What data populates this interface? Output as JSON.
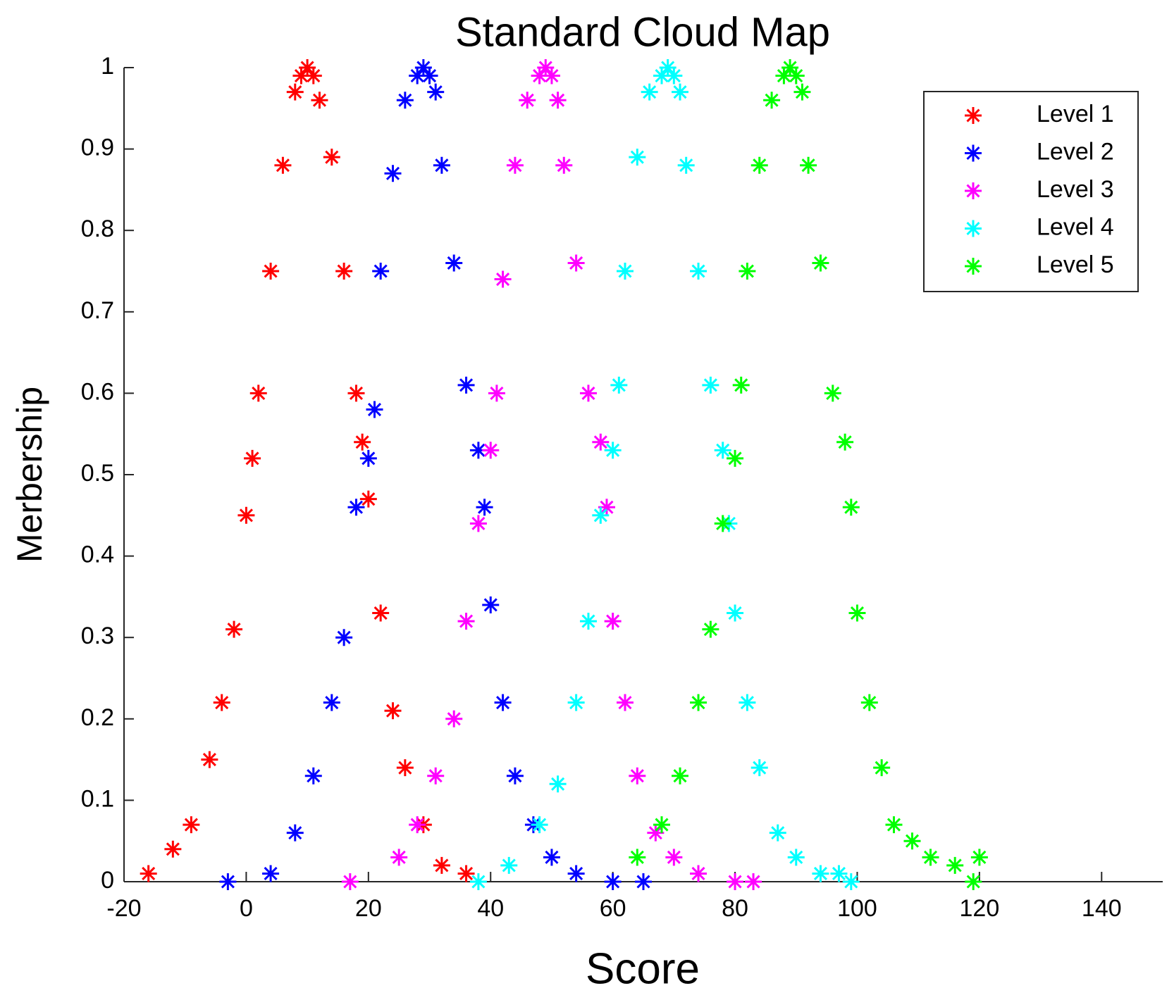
{
  "chart_data": {
    "type": "scatter",
    "title": "Standard Cloud Map",
    "x_label": "Score",
    "y_label": "Merbership",
    "xlim": [
      -20,
      150
    ],
    "xticks": [
      -20,
      0,
      20,
      40,
      60,
      80,
      100,
      120,
      140
    ],
    "ylim": [
      0,
      1
    ],
    "yticks": [
      0,
      0.1,
      0.2,
      0.3,
      0.4,
      0.5,
      0.6,
      0.7,
      0.8,
      0.9,
      1
    ],
    "legend": "northeast",
    "marker": "asterisk",
    "series": [
      {
        "name": "Level 1",
        "color": "#ff0000",
        "x": [
          -16,
          -12,
          -9,
          -6,
          -4,
          -2,
          0,
          1,
          2,
          4,
          6,
          8,
          9,
          10,
          11,
          12,
          14,
          16,
          18,
          19,
          20,
          22,
          24,
          26,
          29,
          32,
          36
        ],
        "values": [
          0.01,
          0.04,
          0.07,
          0.15,
          0.22,
          0.31,
          0.45,
          0.52,
          0.6,
          0.75,
          0.88,
          0.97,
          0.99,
          1,
          0.99,
          0.96,
          0.89,
          0.75,
          0.6,
          0.54,
          0.47,
          0.33,
          0.21,
          0.14,
          0.07,
          0.02,
          0.01
        ]
      },
      {
        "name": "Level 2",
        "color": "#0000ff",
        "x": [
          -3,
          4,
          8,
          11,
          14,
          16,
          18,
          20,
          21,
          22,
          24,
          26,
          28,
          29,
          30,
          31,
          32,
          34,
          36,
          38,
          39,
          40,
          42,
          44,
          47,
          50,
          54,
          60,
          65
        ],
        "values": [
          0.0,
          0.01,
          0.06,
          0.13,
          0.22,
          0.3,
          0.46,
          0.52,
          0.58,
          0.75,
          0.87,
          0.96,
          0.99,
          1,
          0.99,
          0.97,
          0.88,
          0.76,
          0.61,
          0.53,
          0.46,
          0.34,
          0.22,
          0.13,
          0.07,
          0.03,
          0.01,
          0.0,
          0.0
        ]
      },
      {
        "name": "Level 3",
        "color": "#ff00ff",
        "x": [
          17,
          25,
          28,
          31,
          34,
          36,
          38,
          40,
          41,
          42,
          44,
          46,
          48,
          49,
          50,
          51,
          52,
          54,
          56,
          58,
          59,
          60,
          62,
          64,
          67,
          70,
          74,
          80,
          83
        ],
        "values": [
          0.0,
          0.03,
          0.07,
          0.13,
          0.2,
          0.32,
          0.44,
          0.53,
          0.6,
          0.74,
          0.88,
          0.96,
          0.99,
          1,
          0.99,
          0.96,
          0.88,
          0.76,
          0.6,
          0.54,
          0.46,
          0.32,
          0.22,
          0.13,
          0.06,
          0.03,
          0.01,
          0.0,
          0.0
        ]
      },
      {
        "name": "Level 4",
        "color": "#00ffff",
        "x": [
          38,
          43,
          48,
          51,
          54,
          56,
          58,
          60,
          61,
          62,
          64,
          66,
          68,
          69,
          70,
          71,
          72,
          74,
          76,
          78,
          79,
          80,
          82,
          84,
          87,
          90,
          94,
          97,
          99
        ],
        "values": [
          0.0,
          0.02,
          0.07,
          0.12,
          0.22,
          0.32,
          0.45,
          0.53,
          0.61,
          0.75,
          0.89,
          0.97,
          0.99,
          1,
          0.99,
          0.97,
          0.88,
          0.75,
          0.61,
          0.53,
          0.44,
          0.33,
          0.22,
          0.14,
          0.06,
          0.03,
          0.01,
          0.01,
          0.0
        ]
      },
      {
        "name": "Level 5",
        "color": "#00ff00",
        "x": [
          64,
          68,
          71,
          74,
          76,
          78,
          80,
          81,
          82,
          84,
          86,
          88,
          89,
          90,
          91,
          92,
          94,
          96,
          98,
          99,
          100,
          102,
          104,
          106,
          109,
          112,
          116,
          119,
          120
        ],
        "values": [
          0.03,
          0.07,
          0.13,
          0.22,
          0.31,
          0.44,
          0.52,
          0.61,
          0.75,
          0.88,
          0.96,
          0.99,
          1,
          0.99,
          0.97,
          0.88,
          0.76,
          0.6,
          0.54,
          0.46,
          0.33,
          0.22,
          0.14,
          0.07,
          0.05,
          0.03,
          0.02,
          0.0,
          0.03
        ]
      }
    ]
  }
}
